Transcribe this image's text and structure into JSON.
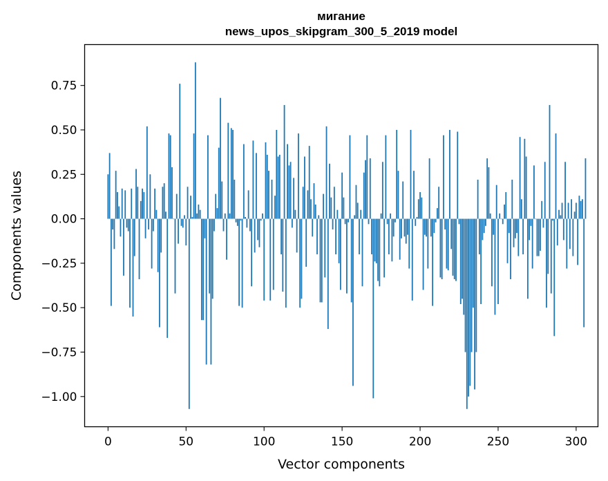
{
  "chart_data": {
    "type": "bar",
    "title_line1": "мигание",
    "title_line2": "news_upos_skipgram_300_5_2019 model",
    "xlabel": "Vector components",
    "ylabel": "Components values",
    "xlim": [
      -15,
      314
    ],
    "ylim": [
      -1.17,
      0.98
    ],
    "xticks": [
      0,
      50,
      100,
      150,
      200,
      250,
      300
    ],
    "yticks": [
      -1.0,
      -0.75,
      -0.5,
      -0.25,
      0.0,
      0.25,
      0.5,
      0.75
    ],
    "ytick_labels": [
      "−1.00",
      "−0.75",
      "−0.50",
      "−0.25",
      "0.00",
      "0.25",
      "0.50",
      "0.75"
    ],
    "xtick_labels": [
      "0",
      "50",
      "100",
      "150",
      "200",
      "250",
      "300"
    ],
    "bar_color": "#1f77b4",
    "values": [
      0.25,
      0.37,
      -0.49,
      -0.06,
      -0.17,
      0.27,
      0.15,
      0.07,
      -0.1,
      0.17,
      -0.32,
      0.16,
      -0.05,
      -0.07,
      -0.5,
      0.17,
      -0.55,
      -0.21,
      0.28,
      0.18,
      -0.34,
      0.1,
      0.17,
      0.15,
      -0.11,
      0.52,
      -0.06,
      0.25,
      -0.28,
      -0.07,
      0.17,
      0.05,
      -0.3,
      -0.61,
      -0.19,
      0.18,
      0.2,
      0.04,
      -0.67,
      0.48,
      0.47,
      0.29,
      0.0,
      -0.42,
      0.14,
      -0.14,
      0.76,
      -0.04,
      -0.05,
      0.02,
      -0.15,
      0.18,
      -1.07,
      0.13,
      0.01,
      0.48,
      0.88,
      0.03,
      0.08,
      0.05,
      -0.57,
      -0.57,
      -0.11,
      -0.82,
      0.47,
      -0.42,
      -0.82,
      -0.45,
      -0.07,
      0.14,
      0.06,
      0.4,
      0.68,
      0.21,
      -0.07,
      0.03,
      -0.23,
      0.54,
      0.03,
      0.51,
      0.5,
      0.22,
      -0.02,
      -0.04,
      -0.49,
      -0.01,
      -0.5,
      0.42,
      0.01,
      -0.05,
      0.16,
      -0.07,
      -0.38,
      0.44,
      -0.19,
      0.37,
      -0.12,
      -0.16,
      -0.01,
      0.03,
      -0.46,
      0.43,
      0.36,
      0.27,
      -0.46,
      0.22,
      -0.4,
      0.13,
      0.5,
      0.35,
      0.36,
      -0.2,
      -0.41,
      0.64,
      -0.5,
      0.42,
      0.3,
      0.32,
      -0.05,
      0.23,
      0.05,
      -0.19,
      0.48,
      -0.5,
      -0.45,
      0.18,
      0.35,
      -0.27,
      0.16,
      0.41,
      0.11,
      -0.1,
      0.2,
      0.08,
      -0.2,
      0.02,
      -0.47,
      -0.47,
      0.14,
      -0.33,
      0.52,
      -0.62,
      0.31,
      0.12,
      -0.06,
      0.18,
      -0.2,
      0.05,
      -0.25,
      -0.4,
      0.26,
      0.12,
      -0.03,
      -0.42,
      -0.02,
      0.47,
      -0.47,
      -0.94,
      0.02,
      0.19,
      0.09,
      -0.2,
      0.05,
      -0.38,
      0.26,
      0.33,
      0.47,
      -0.03,
      0.34,
      -0.2,
      -1.01,
      -0.24,
      -0.25,
      -0.35,
      -0.38,
      0.03,
      0.32,
      -0.33,
      0.47,
      -0.03,
      -0.2,
      0.03,
      -0.24,
      -0.1,
      -0.02,
      0.5,
      0.27,
      -0.23,
      -0.11,
      0.21,
      -0.1,
      -0.14,
      -0.09,
      -0.28,
      0.5,
      -0.46,
      0.27,
      -0.04,
      0.01,
      0.11,
      0.15,
      0.12,
      -0.4,
      -0.09,
      -0.1,
      -0.28,
      0.34,
      -0.1,
      -0.49,
      -0.08,
      -0.02,
      0.06,
      0.18,
      -0.33,
      -0.34,
      0.47,
      -0.06,
      -0.28,
      -0.29,
      0.5,
      -0.17,
      -0.32,
      -0.34,
      -0.35,
      0.49,
      -0.03,
      -0.48,
      -0.45,
      -0.54,
      -0.75,
      -1.07,
      -1.0,
      -0.94,
      -0.75,
      -0.5,
      -0.96,
      -0.75,
      0.22,
      -0.2,
      -0.48,
      -0.12,
      -0.08,
      -0.04,
      0.34,
      0.29,
      0.03,
      -0.38,
      -0.09,
      -0.54,
      0.19,
      -0.48,
      0.03,
      0.0,
      -0.03,
      0.08,
      0.15,
      -0.25,
      -0.08,
      -0.34,
      0.22,
      -0.16,
      -0.11,
      -0.08,
      -0.21,
      0.46,
      0.11,
      -0.2,
      0.45,
      0.35,
      -0.45,
      -0.12,
      -0.04,
      -0.28,
      0.3,
      0.0,
      -0.21,
      -0.21,
      -0.18,
      0.1,
      -0.05,
      0.32,
      -0.5,
      -0.31,
      0.64,
      -0.42,
      -0.01,
      -0.66,
      0.48,
      -0.15,
      0.05,
      0.02,
      0.09,
      -0.12,
      0.32,
      -0.28,
      0.09,
      -0.17,
      0.11,
      -0.21,
      0.04,
      0.09,
      -0.26,
      0.13,
      0.1,
      0.11,
      -0.61,
      0.34
    ]
  }
}
